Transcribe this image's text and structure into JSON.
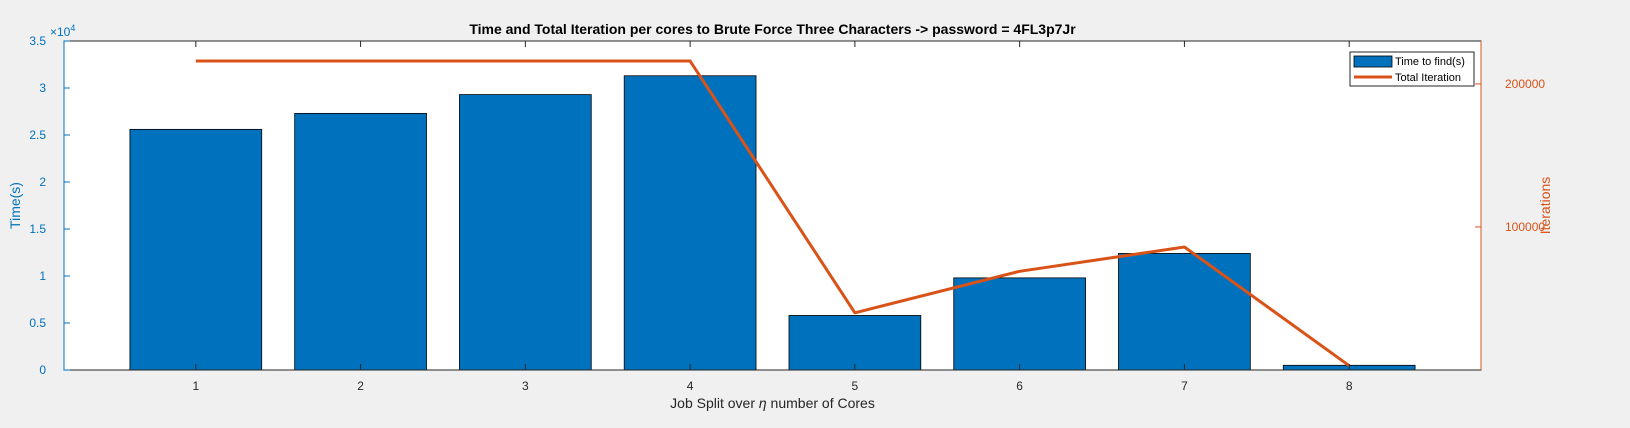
{
  "chart_data": {
    "type": "bar",
    "title": "Time and Total Iteration per cores to Brute Force Three Characters -> password = 4FL3p7Jr",
    "xlabel_prefix": "Job Split over ",
    "xlabel_symbol": "η",
    "xlabel_suffix": " number of Cores",
    "categories": [
      "1",
      "2",
      "3",
      "4",
      "5",
      "6",
      "7",
      "8"
    ],
    "xlim": [
      0.2,
      8.8
    ],
    "left_axis": {
      "label": "Time(s)",
      "ylim": [
        0,
        35000
      ],
      "ticks": [
        0,
        5000,
        10000,
        15000,
        20000,
        25000,
        30000,
        35000
      ],
      "tick_labels": [
        "0",
        "0.5",
        "1",
        "1.5",
        "2",
        "2.5",
        "3",
        "3.5"
      ],
      "exponent_base": "×10",
      "exponent_power": "4",
      "color": "#0072bd"
    },
    "right_axis": {
      "label": "Iterations",
      "ylim": [
        0,
        230000
      ],
      "ticks": [
        100000,
        200000
      ],
      "tick_labels": [
        "100000",
        "200000"
      ],
      "color": "#d95319"
    },
    "series": [
      {
        "name": "Time to find(s)",
        "type": "bar",
        "axis": "left",
        "color": "#0072bd",
        "values": [
          25600,
          27300,
          29300,
          31300,
          5800,
          9800,
          12400,
          500
        ]
      },
      {
        "name": "Total Iteration",
        "type": "line",
        "axis": "right",
        "color": "#d95319",
        "values": [
          216000,
          216000,
          216000,
          216000,
          40000,
          69000,
          86000,
          3000
        ]
      }
    ],
    "grid": false,
    "legend_position": "top-right"
  }
}
